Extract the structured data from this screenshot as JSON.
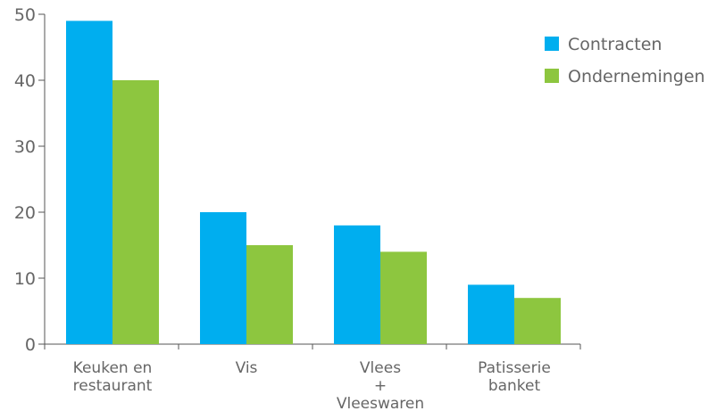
{
  "chart_data": {
    "type": "bar",
    "categories": [
      [
        "Keuken en",
        "restaurant"
      ],
      [
        "Vis"
      ],
      [
        "Vlees",
        "+",
        "Vleeswaren"
      ],
      [
        "Patisserie",
        "banket"
      ]
    ],
    "series": [
      {
        "name": "Contracten",
        "color": "#00aeef",
        "values": [
          49,
          20,
          18,
          9
        ]
      },
      {
        "name": "Ondernemingen",
        "color": "#8dc63f",
        "values": [
          40,
          15,
          14,
          7
        ]
      }
    ],
    "title": "",
    "xlabel": "",
    "ylabel": "",
    "ylim": [
      0,
      50
    ],
    "yticks": [
      0,
      10,
      20,
      30,
      40,
      50
    ],
    "grid": false,
    "legend_position": "top-right"
  }
}
